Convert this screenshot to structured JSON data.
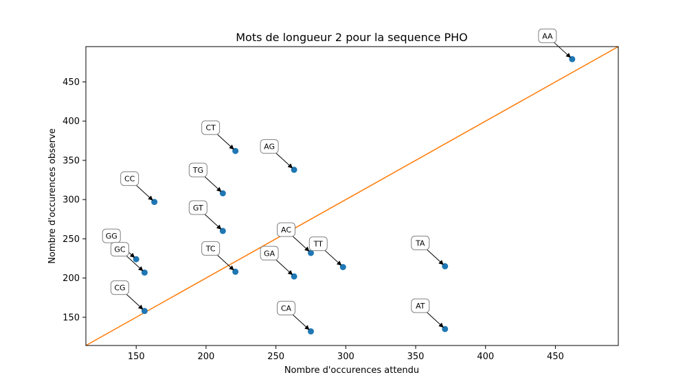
{
  "chart_data": {
    "type": "scatter",
    "title": "Mots de longueur 2 pour la sequence PHO",
    "xlabel": "Nombre d'occurences attendu",
    "ylabel": "Nombre d'occurences observe",
    "xlim": [
      114,
      495
    ],
    "ylim": [
      114,
      495
    ],
    "xticks": [
      150,
      200,
      250,
      300,
      350,
      400,
      450
    ],
    "yticks": [
      150,
      200,
      250,
      300,
      350,
      400,
      450
    ],
    "grid": false,
    "point_color": "#1f77b4",
    "line_color": "#ff7f0e",
    "reference_line": "y = x",
    "points": [
      {
        "label": "AA",
        "x": 462,
        "y": 479
      },
      {
        "label": "CT",
        "x": 221,
        "y": 362
      },
      {
        "label": "AG",
        "x": 263,
        "y": 338
      },
      {
        "label": "TG",
        "x": 212,
        "y": 308
      },
      {
        "label": "CC",
        "x": 163,
        "y": 297
      },
      {
        "label": "GT",
        "x": 212,
        "y": 260
      },
      {
        "label": "AC",
        "x": 275,
        "y": 232
      },
      {
        "label": "TT",
        "x": 298,
        "y": 214
      },
      {
        "label": "TA",
        "x": 371,
        "y": 215
      },
      {
        "label": "GG",
        "x": 150,
        "y": 224
      },
      {
        "label": "GC",
        "x": 156,
        "y": 207
      },
      {
        "label": "TC",
        "x": 221,
        "y": 208
      },
      {
        "label": "GA",
        "x": 263,
        "y": 202
      },
      {
        "label": "CG",
        "x": 156,
        "y": 158
      },
      {
        "label": "CA",
        "x": 275,
        "y": 132
      },
      {
        "label": "AT",
        "x": 371,
        "y": 135
      }
    ]
  }
}
